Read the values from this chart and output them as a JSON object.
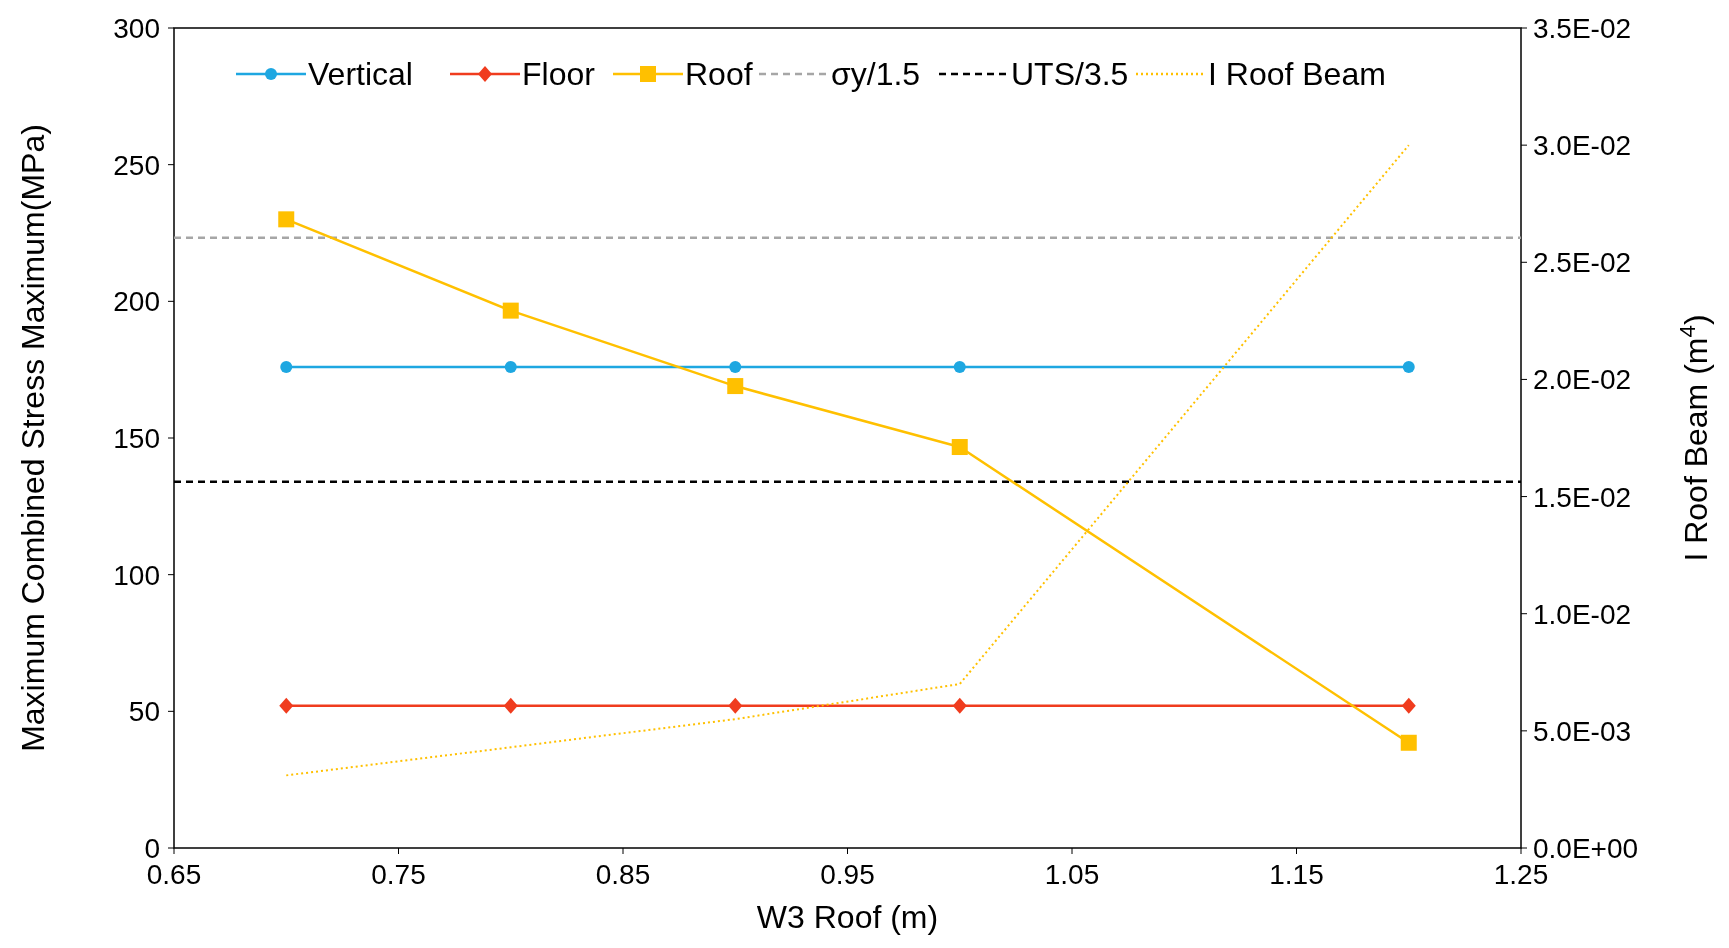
{
  "chart_data": {
    "type": "line",
    "xlabel": "W3 Roof (m)",
    "ylabel": "Maximum  Combined  Stress Maximum(MPa)",
    "y2label": "I Roof Beam (m$^{4}$)",
    "x": [
      0.7,
      0.8,
      0.9,
      1.0,
      1.2
    ],
    "series": [
      {
        "name": "Vertical",
        "color": "#1ea7e1",
        "marker": "circle",
        "line_style": "solid",
        "values": [
          176,
          176,
          176,
          176,
          176
        ]
      },
      {
        "name": "Floor",
        "color": "#f03c1e",
        "marker": "diamond",
        "line_style": "solid",
        "values": [
          52,
          52,
          52,
          52,
          52
        ]
      },
      {
        "name": "Roof",
        "color": "#ffc000",
        "marker": "square",
        "line_style": "solid",
        "values": [
          230,
          196.6,
          169,
          146.7,
          38.5
        ]
      },
      {
        "name": "I Roof Beam",
        "color": "#ffc000",
        "marker": "none",
        "line_style": "dotted",
        "axis": "y2",
        "values": [
          0.0031,
          0.0043,
          0.0055,
          0.007,
          0.03
        ]
      }
    ],
    "ref_lines": [
      {
        "axis": "y",
        "value": 223.3,
        "label": "σy/1.5",
        "color": "#a6a6a6",
        "line_style": "dashed"
      },
      {
        "axis": "y",
        "value": 134,
        "label": "UTS/3.5",
        "color": "#000000",
        "line_style": "dashed"
      }
    ],
    "xlim": [
      0.65,
      1.25
    ],
    "xticks": [
      {
        "value": 0.65,
        "label": "0.65"
      },
      {
        "value": 0.75,
        "label": "0.75"
      },
      {
        "value": 0.85,
        "label": "0.85"
      },
      {
        "value": 0.95,
        "label": "0.95"
      },
      {
        "value": 1.05,
        "label": "1.05"
      },
      {
        "value": 1.15,
        "label": "1.15"
      },
      {
        "value": 1.25,
        "label": "1.25"
      }
    ],
    "ylim": [
      0,
      300
    ],
    "yticks": [
      0,
      50,
      100,
      150,
      200,
      250,
      300
    ],
    "y2lim": [
      0,
      0.035
    ],
    "y2ticks": [
      {
        "value": 0,
        "label": "0.0E+00"
      },
      {
        "value": 0.005,
        "label": "5.0E-03"
      },
      {
        "value": 0.01,
        "label": "1.0E-02"
      },
      {
        "value": 0.015,
        "label": "1.5E-02"
      },
      {
        "value": 0.02,
        "label": "2.0E-02"
      },
      {
        "value": 0.025,
        "label": "2.5E-02"
      },
      {
        "value": 0.03,
        "label": "3.0E-02"
      },
      {
        "value": 0.035,
        "label": "3.5E-02"
      }
    ],
    "grid": false,
    "legend": "top"
  }
}
